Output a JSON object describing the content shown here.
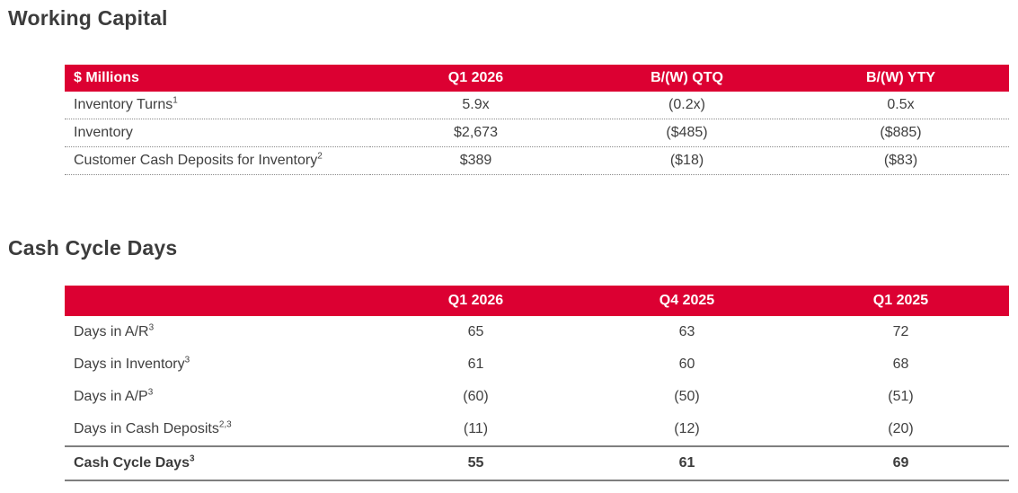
{
  "theme": {
    "accent_color": "#DC0032",
    "title_color": "#3C3C3C",
    "body_text_color": "#404040"
  },
  "working_capital": {
    "title": "Working Capital",
    "table": {
      "columns": [
        "$ Millions",
        "Q1 2026",
        "B/(W) QTQ",
        "B/(W) YTY"
      ],
      "rows": [
        {
          "label": "Inventory Turns",
          "sup": "1",
          "values": [
            "5.9x",
            "(0.2x)",
            "0.5x"
          ]
        },
        {
          "label": "Inventory",
          "sup": "",
          "values": [
            "$2,673",
            "($485)",
            "($885)"
          ]
        },
        {
          "label": "Customer Cash Deposits for Inventory",
          "sup": "2",
          "values": [
            "$389",
            "($18)",
            "($83)"
          ]
        }
      ]
    }
  },
  "cash_cycle": {
    "title": "Cash Cycle Days",
    "table": {
      "columns": [
        "",
        "Q1 2026",
        "Q4 2025",
        "Q1 2025"
      ],
      "rows": [
        {
          "label": "Days in A/R",
          "sup": "3",
          "values": [
            "65",
            "63",
            "72"
          ]
        },
        {
          "label": "Days in Inventory",
          "sup": "3",
          "values": [
            "61",
            "60",
            "68"
          ]
        },
        {
          "label": "Days in A/P",
          "sup": "3",
          "values": [
            "(60)",
            "(50)",
            "(51)"
          ]
        },
        {
          "label": "Days in Cash Deposits",
          "sup": "2,3",
          "values": [
            "(11)",
            "(12)",
            "(20)"
          ]
        }
      ],
      "total_row": {
        "label": "Cash Cycle Days",
        "sup": "3",
        "values": [
          "55",
          "61",
          "69"
        ]
      }
    }
  }
}
